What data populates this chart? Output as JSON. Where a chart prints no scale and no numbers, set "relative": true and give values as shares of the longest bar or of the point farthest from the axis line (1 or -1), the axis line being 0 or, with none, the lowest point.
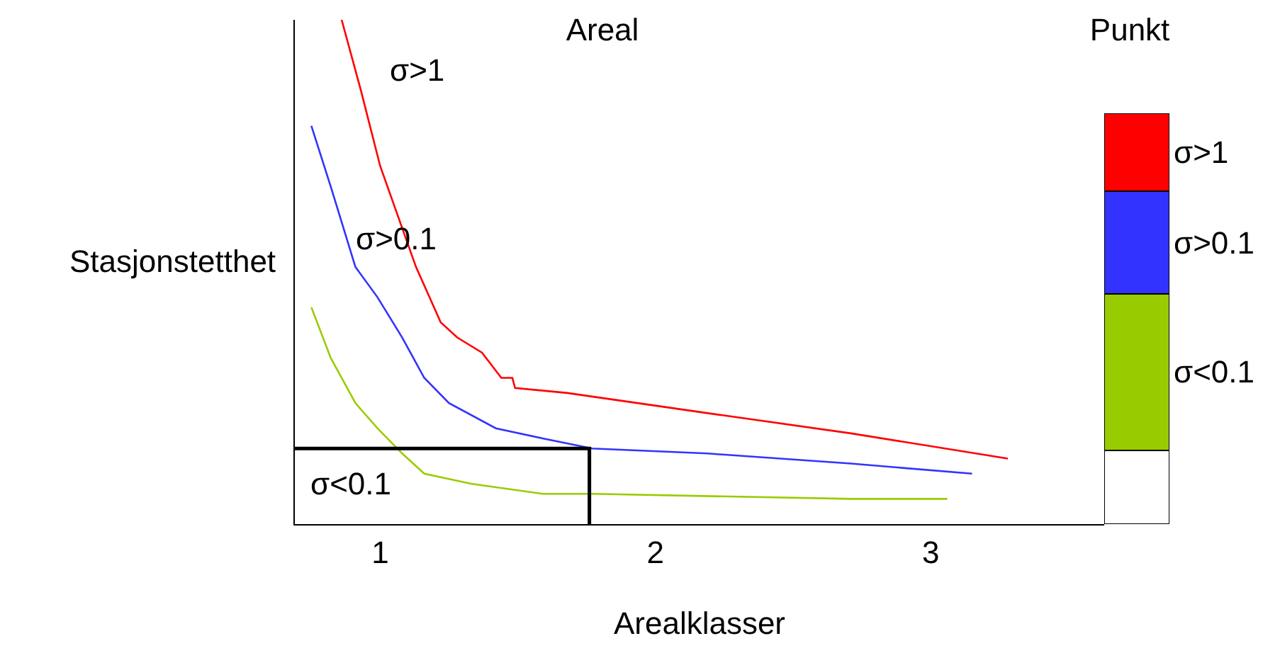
{
  "chart_data": [
    {
      "type": "line",
      "title": "Areal",
      "xlabel": "Arealklasser",
      "ylabel": "Stasjonstetthet",
      "relative": true,
      "xlim": [
        0.69,
        3.63
      ],
      "xticks": [
        1,
        2,
        3
      ],
      "grid": false,
      "legend": false,
      "marker": "none",
      "line_style": "solid",
      "series": [
        {
          "color": "#ff0000",
          "x": [
            0.86,
            0.93,
            1.0,
            1.13,
            1.22,
            1.28,
            1.37,
            1.44,
            1.48,
            1.49,
            1.68,
            2.19,
            2.71,
            3.28
          ],
          "values": [
            1,
            0.86,
            0.71,
            0.51,
            0.4,
            0.37,
            0.34,
            0.29,
            0.29,
            0.27,
            0.26,
            0.22,
            0.18,
            0.13
          ]
        },
        {
          "color": "#3333ff",
          "x": [
            0.75,
            0.82,
            0.91,
            0.99,
            1.08,
            1.16,
            1.25,
            1.42,
            1.59,
            1.77,
            2.19,
            2.71,
            3.15
          ],
          "values": [
            0.79,
            0.67,
            0.51,
            0.45,
            0.37,
            0.29,
            0.24,
            0.19,
            0.17,
            0.15,
            0.14,
            0.12,
            0.1
          ]
        },
        {
          "color": "#99cc00",
          "x": [
            0.75,
            0.82,
            0.91,
            0.99,
            1.08,
            1.16,
            1.33,
            1.59,
            1.77,
            2.71,
            3.06
          ],
          "values": [
            0.43,
            0.33,
            0.24,
            0.19,
            0.14,
            0.1,
            0.08,
            0.06,
            0.06,
            0.05,
            0.05
          ]
        },
        {
          "color": "#000000",
          "x": [
            0.69,
            1.76,
            1.76
          ],
          "values": [
            0.15,
            0.15,
            0
          ]
        }
      ],
      "annotations": [
        "σ>1",
        "σ>0.1",
        "σ<0.1"
      ]
    },
    {
      "type": "bar",
      "title": "Punkt",
      "stacked": true,
      "relative": true,
      "categories": [
        null
      ],
      "legend": false,
      "series": [
        {
          "color": "#ffffff",
          "values": [
            0.18
          ]
        },
        {
          "name": "σ<0.1",
          "color": "#99cc00",
          "values": [
            0.38
          ]
        },
        {
          "name": "σ>0.1",
          "color": "#3333ff",
          "values": [
            0.25
          ]
        },
        {
          "name": "σ>1",
          "color": "#ff0000",
          "values": [
            0.19
          ]
        }
      ]
    }
  ]
}
